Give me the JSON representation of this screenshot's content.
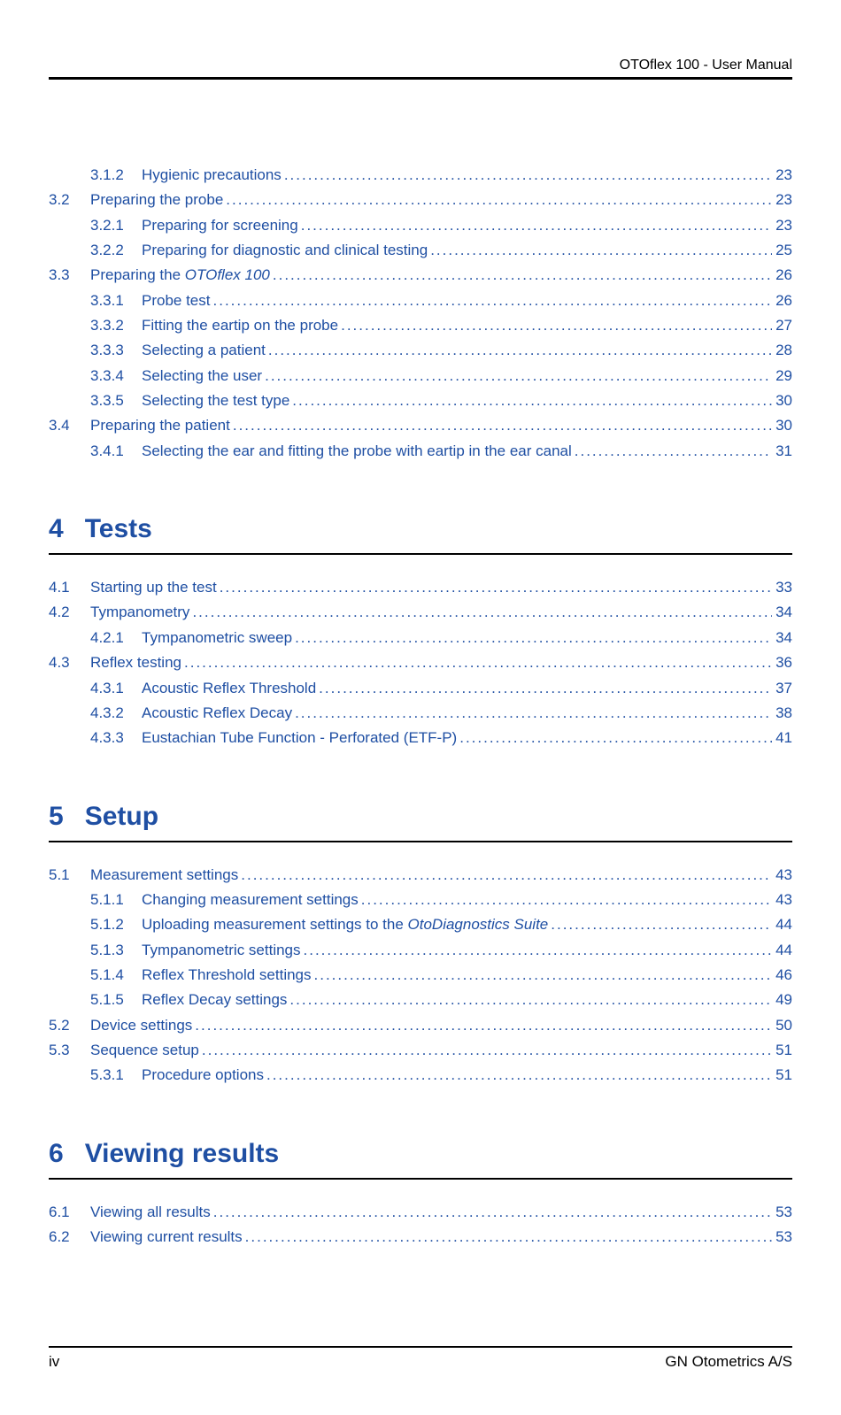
{
  "header_title": "OTOflex 100 - User Manual",
  "footer_left": "iv",
  "footer_right": "GN Otometrics A/S",
  "colors": {
    "link": "#1f4fa3",
    "rule": "#000000",
    "text": "#000000",
    "background": "#ffffff"
  },
  "fontsizes": {
    "header": 19,
    "toc": 17,
    "chapter": 30,
    "footer": 17
  },
  "toc": [
    {
      "level": 2,
      "num": "3.1.2",
      "title": "Hygienic precautions",
      "page": "23"
    },
    {
      "level": 1,
      "num": "3.2",
      "title": "Preparing the probe",
      "page": "23"
    },
    {
      "level": 2,
      "num": "3.2.1",
      "title": "Preparing for screening",
      "page": "23"
    },
    {
      "level": 2,
      "num": "3.2.2",
      "title": "Preparing for diagnostic and clinical testing",
      "page": "25"
    },
    {
      "level": 1,
      "num": "3.3",
      "title_html": "Preparing the <em>OTOflex 100</em>",
      "page": "26"
    },
    {
      "level": 2,
      "num": "3.3.1",
      "title": "Probe test",
      "page": "26"
    },
    {
      "level": 2,
      "num": "3.3.2",
      "title": "Fitting the eartip on the probe",
      "page": "27"
    },
    {
      "level": 2,
      "num": "3.3.3",
      "title": "Selecting a patient",
      "page": "28"
    },
    {
      "level": 2,
      "num": "3.3.4",
      "title": "Selecting the user",
      "page": "29"
    },
    {
      "level": 2,
      "num": "3.3.5",
      "title": "Selecting the test type",
      "page": "30"
    },
    {
      "level": 1,
      "num": "3.4",
      "title": "Preparing the patient",
      "page": "30"
    },
    {
      "level": 2,
      "num": "3.4.1",
      "title": "Selecting the ear and fitting the probe with eartip in the ear canal",
      "page": "31"
    },
    {
      "level": 0,
      "num": "4",
      "title": "Tests"
    },
    {
      "level": 1,
      "num": "4.1",
      "title": "Starting up the test",
      "page": "33"
    },
    {
      "level": 1,
      "num": "4.2",
      "title": "Tympanometry",
      "page": "34"
    },
    {
      "level": 2,
      "num": "4.2.1",
      "title": "Tympanometric sweep",
      "page": "34"
    },
    {
      "level": 1,
      "num": "4.3",
      "title": "Reflex testing",
      "page": "36"
    },
    {
      "level": 2,
      "num": "4.3.1",
      "title": "Acoustic Reflex Threshold",
      "page": "37"
    },
    {
      "level": 2,
      "num": "4.3.2",
      "title": "Acoustic Reflex Decay",
      "page": "38"
    },
    {
      "level": 2,
      "num": "4.3.3",
      "title": "Eustachian Tube Function - Perforated (ETF-P)",
      "page": "41"
    },
    {
      "level": 0,
      "num": "5",
      "title": "Setup"
    },
    {
      "level": 1,
      "num": "5.1",
      "title": "Measurement settings",
      "page": "43"
    },
    {
      "level": 2,
      "num": "5.1.1",
      "title": "Changing measurement settings",
      "page": "43"
    },
    {
      "level": 2,
      "num": "5.1.2",
      "title_html": "Uploading measurement settings to the <em>OtoDiagnostics Suite</em>",
      "page": "44"
    },
    {
      "level": 2,
      "num": "5.1.3",
      "title": "Tympanometric settings",
      "page": "44"
    },
    {
      "level": 2,
      "num": "5.1.4",
      "title": "Reflex Threshold settings",
      "page": "46"
    },
    {
      "level": 2,
      "num": "5.1.5",
      "title": "Reflex Decay settings",
      "page": "49"
    },
    {
      "level": 1,
      "num": "5.2",
      "title": "Device settings",
      "page": "50"
    },
    {
      "level": 1,
      "num": "5.3",
      "title": "Sequence setup",
      "page": "51"
    },
    {
      "level": 2,
      "num": "5.3.1",
      "title": "Procedure options",
      "page": "51"
    },
    {
      "level": 0,
      "num": "6",
      "title": "Viewing results"
    },
    {
      "level": 1,
      "num": "6.1",
      "title": "Viewing all results",
      "page": "53"
    },
    {
      "level": 1,
      "num": "6.2",
      "title": "Viewing current results",
      "page": "53"
    }
  ]
}
